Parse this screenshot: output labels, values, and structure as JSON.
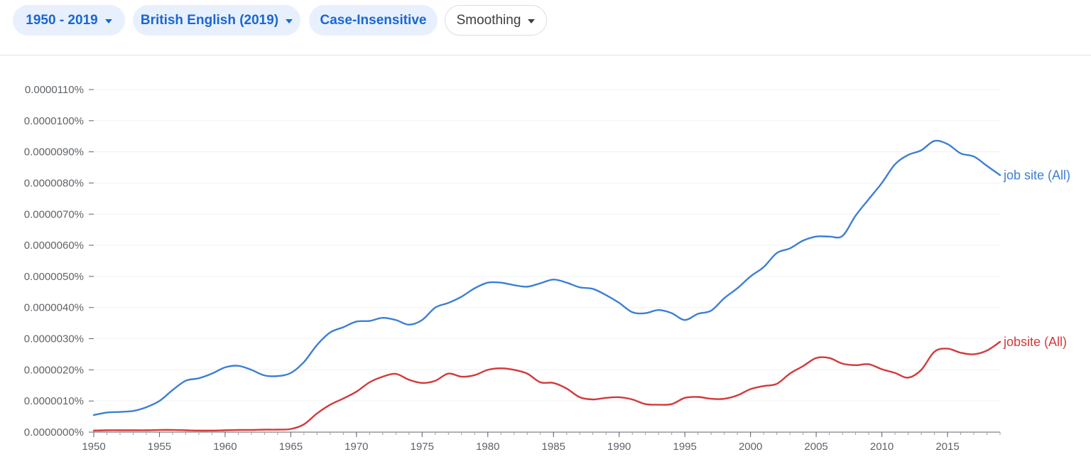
{
  "toolbar": {
    "range_label": "1950 - 2019",
    "corpus_label": "British English (2019)",
    "case_label": "Case-Insensitive",
    "smoothing_label": "Smoothing"
  },
  "colors": {
    "chip_bg": "#e8f0fe",
    "chip_text": "#1967d2",
    "series_blue": "#3c7fd4",
    "series_red": "#d3393a"
  },
  "chart_data": {
    "type": "line",
    "title": "",
    "xlabel": "",
    "ylabel": "",
    "xlim": [
      1950,
      2019
    ],
    "ylim": [
      0,
      1.1e-05
    ],
    "x_ticks": [
      1950,
      1955,
      1960,
      1965,
      1970,
      1975,
      1980,
      1985,
      1990,
      1995,
      2000,
      2005,
      2010,
      2015
    ],
    "y_ticks": [
      "0.0000000%",
      "0.0000010%",
      "0.0000020%",
      "0.0000030%",
      "0.0000040%",
      "0.0000050%",
      "0.0000060%",
      "0.0000070%",
      "0.0000080%",
      "0.0000090%",
      "0.0000100%",
      "0.0000110%"
    ],
    "grid": true,
    "series": [
      {
        "name": "job site (All)",
        "color": "#3c7fd4",
        "points": [
          [
            1950,
            5.5e-07
          ],
          [
            1951,
            6.3e-07
          ],
          [
            1952,
            6.5e-07
          ],
          [
            1953,
            6.8e-07
          ],
          [
            1954,
            8e-07
          ],
          [
            1955,
            1e-06
          ],
          [
            1956,
            1.35e-06
          ],
          [
            1957,
            1.65e-06
          ],
          [
            1958,
            1.73e-06
          ],
          [
            1959,
            1.88e-06
          ],
          [
            1960,
            2.08e-06
          ],
          [
            1961,
            2.13e-06
          ],
          [
            1962,
            2e-06
          ],
          [
            1963,
            1.82e-06
          ],
          [
            1964,
            1.8e-06
          ],
          [
            1965,
            1.9e-06
          ],
          [
            1966,
            2.25e-06
          ],
          [
            1967,
            2.8e-06
          ],
          [
            1968,
            3.2e-06
          ],
          [
            1969,
            3.37e-06
          ],
          [
            1970,
            3.55e-06
          ],
          [
            1971,
            3.57e-06
          ],
          [
            1972,
            3.67e-06
          ],
          [
            1973,
            3.6e-06
          ],
          [
            1974,
            3.45e-06
          ],
          [
            1975,
            3.6e-06
          ],
          [
            1976,
            4e-06
          ],
          [
            1977,
            4.15e-06
          ],
          [
            1978,
            4.35e-06
          ],
          [
            1979,
            4.62e-06
          ],
          [
            1980,
            4.8e-06
          ],
          [
            1981,
            4.8e-06
          ],
          [
            1982,
            4.72e-06
          ],
          [
            1983,
            4.67e-06
          ],
          [
            1984,
            4.78e-06
          ],
          [
            1985,
            4.9e-06
          ],
          [
            1986,
            4.8e-06
          ],
          [
            1987,
            4.65e-06
          ],
          [
            1988,
            4.6e-06
          ],
          [
            1989,
            4.4e-06
          ],
          [
            1990,
            4.15e-06
          ],
          [
            1991,
            3.85e-06
          ],
          [
            1992,
            3.82e-06
          ],
          [
            1993,
            3.92e-06
          ],
          [
            1994,
            3.82e-06
          ],
          [
            1995,
            3.6e-06
          ],
          [
            1996,
            3.8e-06
          ],
          [
            1997,
            3.9e-06
          ],
          [
            1998,
            4.3e-06
          ],
          [
            1999,
            4.62e-06
          ],
          [
            2000,
            5e-06
          ],
          [
            2001,
            5.3e-06
          ],
          [
            2002,
            5.75e-06
          ],
          [
            2003,
            5.9e-06
          ],
          [
            2004,
            6.15e-06
          ],
          [
            2005,
            6.28e-06
          ],
          [
            2006,
            6.28e-06
          ],
          [
            2007,
            6.3e-06
          ],
          [
            2008,
            6.95e-06
          ],
          [
            2009,
            7.48e-06
          ],
          [
            2010,
            8e-06
          ],
          [
            2011,
            8.6e-06
          ],
          [
            2012,
            8.9e-06
          ],
          [
            2013,
            9.05e-06
          ],
          [
            2014,
            9.35e-06
          ],
          [
            2015,
            9.25e-06
          ],
          [
            2016,
            8.95e-06
          ],
          [
            2017,
            8.85e-06
          ],
          [
            2018,
            8.55e-06
          ],
          [
            2019,
            8.25e-06
          ]
        ]
      },
      {
        "name": "jobsite (All)",
        "color": "#d3393a",
        "points": [
          [
            1950,
            5e-08
          ],
          [
            1951,
            6e-08
          ],
          [
            1952,
            6e-08
          ],
          [
            1953,
            6e-08
          ],
          [
            1954,
            6e-08
          ],
          [
            1955,
            7e-08
          ],
          [
            1956,
            7e-08
          ],
          [
            1957,
            6e-08
          ],
          [
            1958,
            5e-08
          ],
          [
            1959,
            5e-08
          ],
          [
            1960,
            6e-08
          ],
          [
            1961,
            7e-08
          ],
          [
            1962,
            7e-08
          ],
          [
            1963,
            8e-08
          ],
          [
            1964,
            8e-08
          ],
          [
            1965,
            1e-07
          ],
          [
            1966,
            2.5e-07
          ],
          [
            1967,
            6e-07
          ],
          [
            1968,
            8.8e-07
          ],
          [
            1969,
            1.08e-06
          ],
          [
            1970,
            1.3e-06
          ],
          [
            1971,
            1.6e-06
          ],
          [
            1972,
            1.78e-06
          ],
          [
            1973,
            1.87e-06
          ],
          [
            1974,
            1.68e-06
          ],
          [
            1975,
            1.58e-06
          ],
          [
            1976,
            1.65e-06
          ],
          [
            1977,
            1.88e-06
          ],
          [
            1978,
            1.78e-06
          ],
          [
            1979,
            1.83e-06
          ],
          [
            1980,
            2e-06
          ],
          [
            1981,
            2.05e-06
          ],
          [
            1982,
            2e-06
          ],
          [
            1983,
            1.88e-06
          ],
          [
            1984,
            1.6e-06
          ],
          [
            1985,
            1.58e-06
          ],
          [
            1986,
            1.4e-06
          ],
          [
            1987,
            1.12e-06
          ],
          [
            1988,
            1.05e-06
          ],
          [
            1989,
            1.1e-06
          ],
          [
            1990,
            1.12e-06
          ],
          [
            1991,
            1.05e-06
          ],
          [
            1992,
            9e-07
          ],
          [
            1993,
            8.8e-07
          ],
          [
            1994,
            9e-07
          ],
          [
            1995,
            1.1e-06
          ],
          [
            1996,
            1.13e-06
          ],
          [
            1997,
            1.07e-06
          ],
          [
            1998,
            1.07e-06
          ],
          [
            1999,
            1.18e-06
          ],
          [
            2000,
            1.38e-06
          ],
          [
            2001,
            1.48e-06
          ],
          [
            2002,
            1.55e-06
          ],
          [
            2003,
            1.88e-06
          ],
          [
            2004,
            2.12e-06
          ],
          [
            2005,
            2.38e-06
          ],
          [
            2006,
            2.38e-06
          ],
          [
            2007,
            2.2e-06
          ],
          [
            2008,
            2.15e-06
          ],
          [
            2009,
            2.18e-06
          ],
          [
            2010,
            2.02e-06
          ],
          [
            2011,
            1.9e-06
          ],
          [
            2012,
            1.75e-06
          ],
          [
            2013,
            2e-06
          ],
          [
            2014,
            2.58e-06
          ],
          [
            2015,
            2.68e-06
          ],
          [
            2016,
            2.55e-06
          ],
          [
            2017,
            2.5e-06
          ],
          [
            2018,
            2.62e-06
          ],
          [
            2019,
            2.9e-06
          ]
        ]
      }
    ]
  }
}
